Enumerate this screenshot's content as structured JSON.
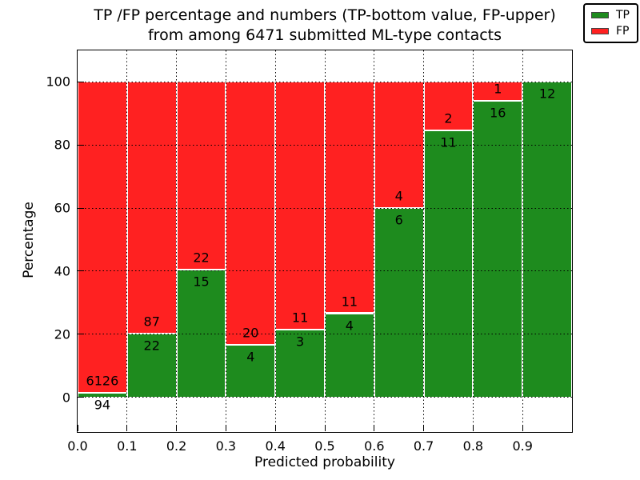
{
  "figure": {
    "title_line1": "TP /FP percentage and numbers (TP-bottom value, FP-upper)",
    "title_line2": "from among 6471 submitted ML-type contacts",
    "xlabel": "Predicted probability",
    "ylabel": "Percentage"
  },
  "legend": {
    "entries": [
      {
        "label": "TP",
        "color": "#1e8b1e"
      },
      {
        "label": "FP",
        "color": "#ff2121"
      }
    ]
  },
  "chart_data": {
    "type": "bar",
    "stacked": true,
    "normalized_to_percent": true,
    "title": "TP /FP percentage and numbers (TP-bottom value, FP-upper)\nfrom among 6471 submitted ML-type contacts",
    "xlabel": "Predicted probability",
    "ylabel": "Percentage",
    "total_contacts": 6471,
    "bin_edges": [
      0.0,
      0.1,
      0.2,
      0.3,
      0.4,
      0.5,
      0.6,
      0.7,
      0.8,
      0.9,
      1.0
    ],
    "series": [
      {
        "name": "TP",
        "color": "#1e8b1e",
        "counts": [
          94,
          22,
          15,
          4,
          3,
          4,
          6,
          11,
          16,
          12
        ]
      },
      {
        "name": "FP",
        "color": "#ff2121",
        "counts": [
          6126,
          87,
          22,
          20,
          11,
          11,
          4,
          2,
          1,
          0
        ]
      }
    ],
    "tp_percent": [
      1.5,
      20.2,
      40.5,
      16.7,
      21.4,
      26.7,
      60.0,
      84.6,
      94.1,
      100.0
    ],
    "x_tick_labels": [
      "0.0",
      "0.1",
      "0.2",
      "0.3",
      "0.4",
      "0.5",
      "0.6",
      "0.7",
      "0.8",
      "0.9"
    ],
    "x_tick_values": [
      0.0,
      0.1,
      0.2,
      0.3,
      0.4,
      0.5,
      0.6,
      0.7,
      0.8,
      0.9
    ],
    "y_tick_labels": [
      "0",
      "20",
      "40",
      "60",
      "80",
      "100"
    ],
    "y_tick_values": [
      0,
      20,
      40,
      60,
      80,
      100
    ],
    "xlim": [
      0.0,
      1.0
    ],
    "ylim": [
      -11,
      110
    ],
    "grid": true,
    "grid_style": "dotted black, drawn above bars",
    "bar_edge_color": "#ffffff",
    "legend_position": "upper right"
  }
}
